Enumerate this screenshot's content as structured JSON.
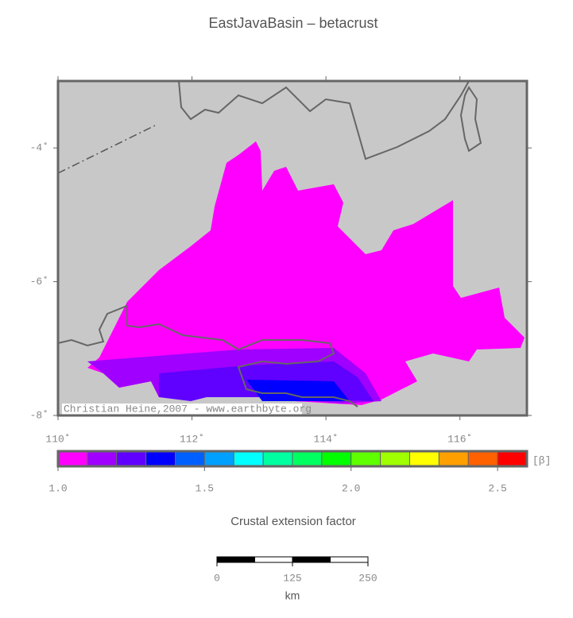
{
  "title": "EastJavaBasin – betacrust",
  "map": {
    "xlim": [
      110,
      117
    ],
    "ylim": [
      -8,
      -3
    ],
    "xticks": [
      {
        "value": 110,
        "label": "110˚"
      },
      {
        "value": 112,
        "label": "112˚"
      },
      {
        "value": 114,
        "label": "114˚"
      },
      {
        "value": 116,
        "label": "116˚"
      }
    ],
    "yticks": [
      {
        "value": -4,
        "label": "-4˚"
      },
      {
        "value": -6,
        "label": "-6˚"
      },
      {
        "value": -8,
        "label": "-8˚"
      }
    ],
    "credit": "Christian Heine,2007 - www.earthbyte.org"
  },
  "colorbar": {
    "lim": [
      1.0,
      2.6
    ],
    "ticks": [
      {
        "value": 1,
        "label": "1.0"
      },
      1.5,
      {
        "value": 2,
        "label": "2.0"
      },
      2.5
    ],
    "colors": [
      "#ff00ff",
      "#a000ff",
      "#6000ff",
      "#0000ff",
      "#0060ff",
      "#00a0ff",
      "#00ffff",
      "#00ffa0",
      "#00ff60",
      "#00ff00",
      "#60ff00",
      "#a0ff00",
      "#ffff00",
      "#ffa000",
      "#ff6000",
      "#ff0000"
    ],
    "unit": "[β]",
    "label": "Crustal extension factor"
  },
  "scalebar": {
    "ticks": [
      0,
      125,
      250
    ],
    "unit": "km"
  }
}
